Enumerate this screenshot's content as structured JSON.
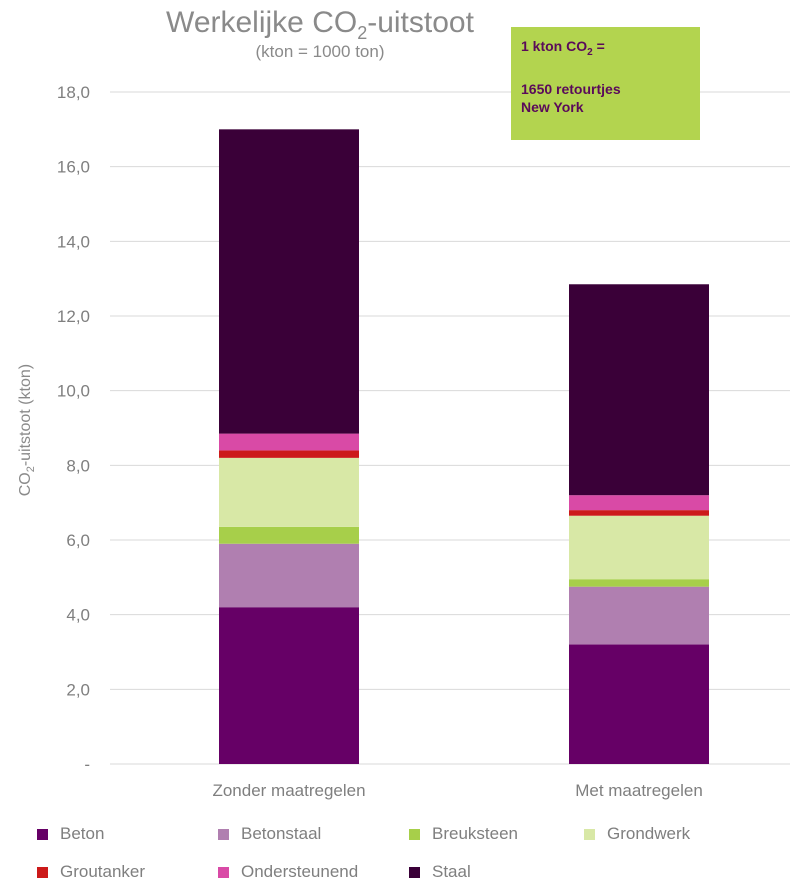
{
  "title": {
    "main_prefix": "Werkelijke CO",
    "main_sub": "2",
    "main_suffix": "-uitstoot",
    "subtitle": "(kton = 1000 ton)"
  },
  "note": {
    "line1_prefix": "1 kton CO",
    "line1_sub": "2",
    "line1_suffix": " =",
    "line2": "1650 retourtjes",
    "line3": "New York"
  },
  "colors": {
    "Beton": "#660066",
    "Betonstaal": "#b07fb0",
    "Breuksteen": "#a7cf4a",
    "Grondwerk": "#d8e8a6",
    "Groutanker": "#cc1a1a",
    "Ondersteunend": "#d94aa6",
    "Staal": "#3a0038",
    "note_bg": "#b3d44f",
    "grid": "#d9d9d9",
    "axis_text": "#7f7f7f"
  },
  "chart_data": {
    "type": "bar",
    "stacked": true,
    "title": "Werkelijke CO2-uitstoot",
    "subtitle": "(kton = 1000 ton)",
    "xlabel": "",
    "ylabel_prefix": "CO",
    "ylabel_sub": "2",
    "ylabel_suffix": "-uitstoot (kton)",
    "ylim": [
      0,
      18
    ],
    "yticks": [
      "-",
      "2,0",
      "4,0",
      "6,0",
      "8,0",
      "10,0",
      "12,0",
      "14,0",
      "16,0",
      "18,0"
    ],
    "ytick_values": [
      0,
      2,
      4,
      6,
      8,
      10,
      12,
      14,
      16,
      18
    ],
    "categories": [
      "Zonder maatregelen",
      "Met maatregelen"
    ],
    "series": [
      {
        "name": "Beton",
        "values": [
          4.2,
          3.2
        ]
      },
      {
        "name": "Betonstaal",
        "values": [
          1.7,
          1.55
        ]
      },
      {
        "name": "Breuksteen",
        "values": [
          0.45,
          0.2
        ]
      },
      {
        "name": "Grondwerk",
        "values": [
          1.85,
          1.7
        ]
      },
      {
        "name": "Groutanker",
        "values": [
          0.2,
          0.15
        ]
      },
      {
        "name": "Ondersteunend",
        "values": [
          0.45,
          0.4
        ]
      },
      {
        "name": "Staal",
        "values": [
          8.15,
          5.65
        ]
      }
    ],
    "grid": true,
    "legend_position": "bottom"
  }
}
